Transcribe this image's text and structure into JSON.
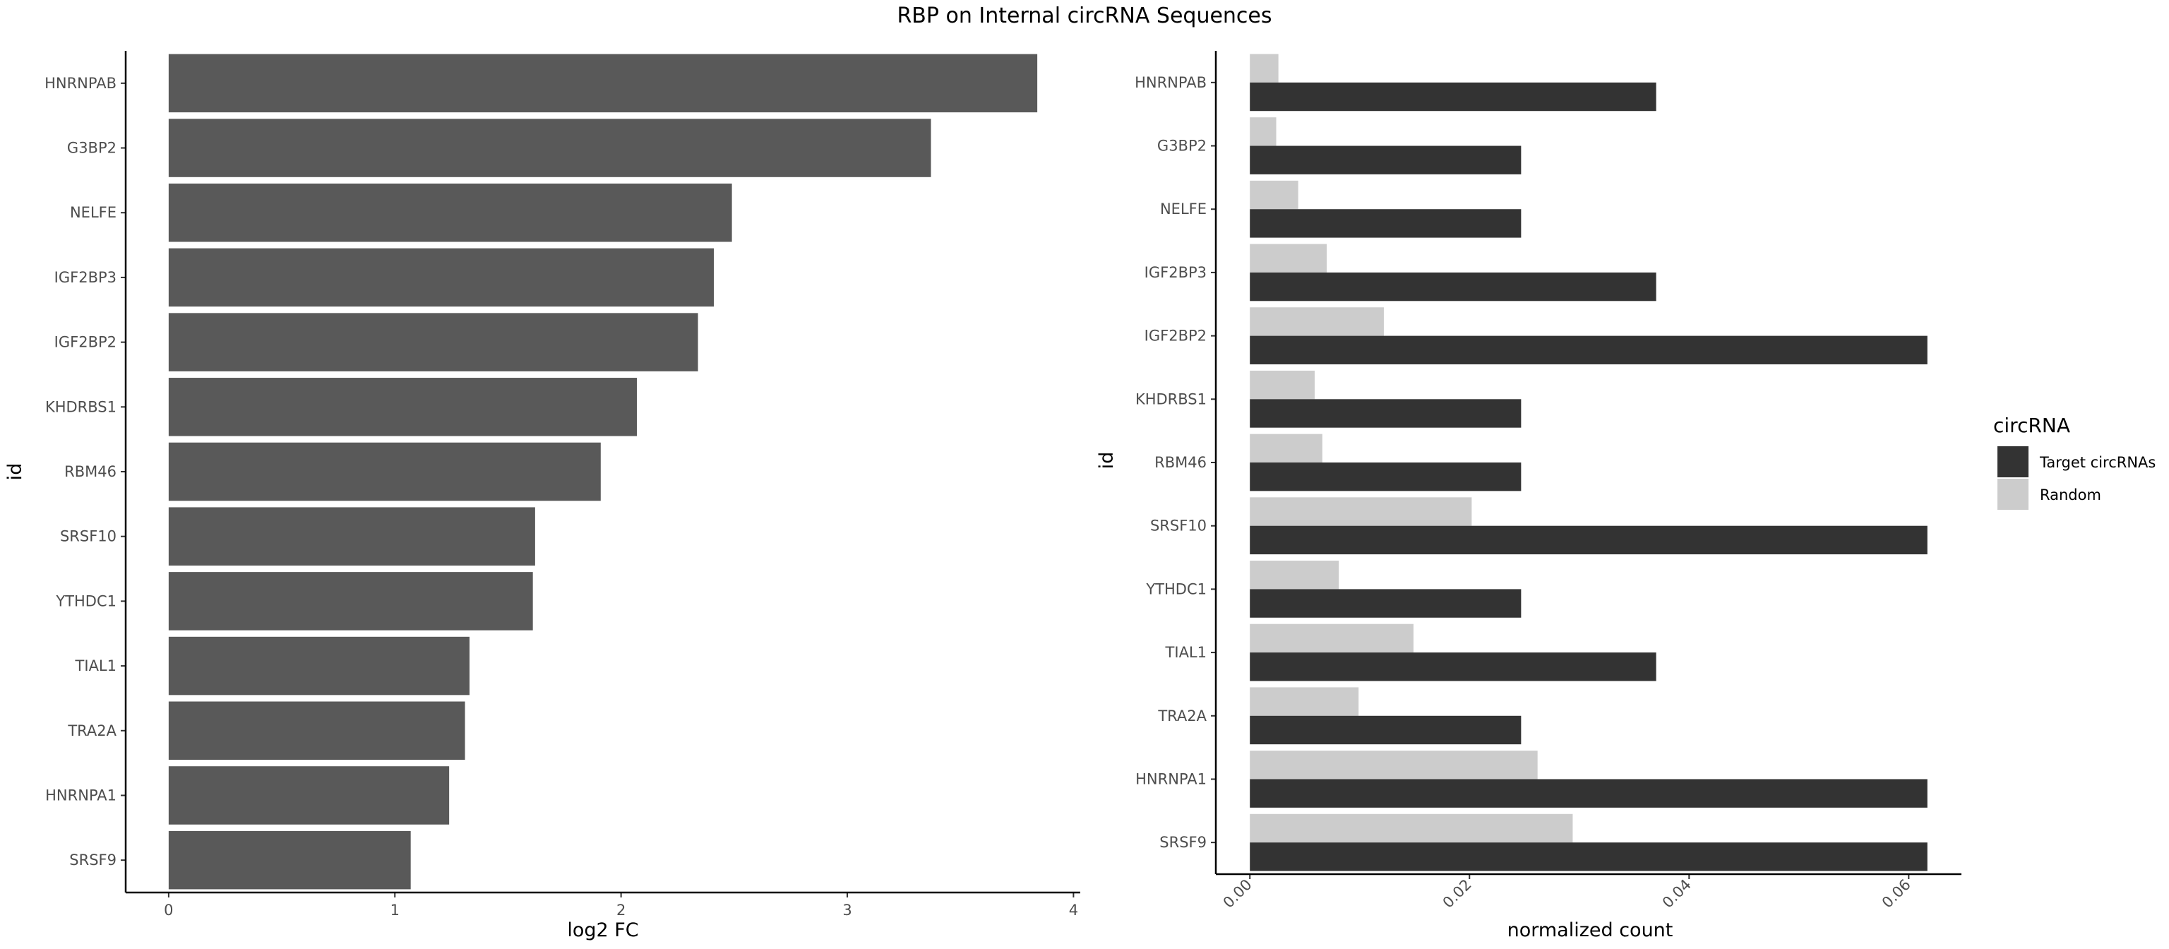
{
  "title": "RBP on Internal circRNA Sequences",
  "chart_data": [
    {
      "type": "bar",
      "orientation": "horizontal",
      "categories": [
        "HNRNPAB",
        "G3BP2",
        "NELFE",
        "IGF2BP3",
        "IGF2BP2",
        "KHDRBS1",
        "RBM46",
        "SRSF10",
        "YTHDC1",
        "TIAL1",
        "TRA2A",
        "HNRNPA1",
        "SRSF9"
      ],
      "values": [
        3.84,
        3.37,
        2.49,
        2.41,
        2.34,
        2.07,
        1.91,
        1.62,
        1.61,
        1.33,
        1.31,
        1.24,
        1.07
      ],
      "xlabel": "log2 FC",
      "ylabel": "id",
      "xlim": [
        -0.19,
        4.03
      ],
      "xticks": [
        0,
        1,
        2,
        3,
        4
      ],
      "grid": false,
      "bar_color": "#595959"
    },
    {
      "type": "bar",
      "orientation": "horizontal",
      "grouping": "dodged",
      "categories": [
        "HNRNPAB",
        "G3BP2",
        "NELFE",
        "IGF2BP3",
        "IGF2BP2",
        "KHDRBS1",
        "RBM46",
        "SRSF10",
        "YTHDC1",
        "TIAL1",
        "TRA2A",
        "HNRNPA1",
        "SRSF9"
      ],
      "series": [
        {
          "name": "Target circRNAs",
          "color": "#333333",
          "values": [
            0.037,
            0.0247,
            0.0247,
            0.037,
            0.0617,
            0.0247,
            0.0247,
            0.0617,
            0.0247,
            0.037,
            0.0247,
            0.0617,
            0.0617
          ]
        },
        {
          "name": "Random",
          "color": "#cccccc",
          "values": [
            0.0026,
            0.0024,
            0.0044,
            0.007,
            0.0122,
            0.0059,
            0.0066,
            0.0202,
            0.0081,
            0.0149,
            0.0099,
            0.0262,
            0.0294
          ]
        }
      ],
      "xlabel": "normalized count",
      "ylabel": "id",
      "xlim": [
        -0.0031,
        0.0648
      ],
      "xticks": [
        "0.00",
        "0.02",
        "0.04",
        "0.06"
      ],
      "xtick_values": [
        0,
        0.02,
        0.04,
        0.06
      ],
      "xtick_rotation": -45,
      "grid": false,
      "legend": {
        "title": "circRNA",
        "position": "right"
      }
    }
  ]
}
